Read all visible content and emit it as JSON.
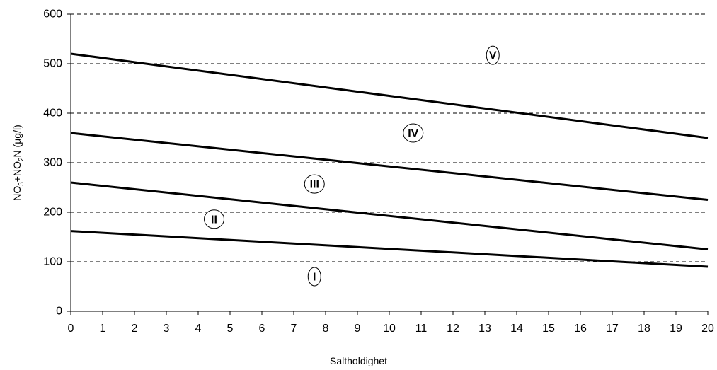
{
  "chart_data": {
    "type": "line",
    "xlabel": "Saltholdighet",
    "ylabel": {
      "parts": [
        "NO",
        "3",
        "+NO",
        "2",
        "N (µg/l)"
      ]
    },
    "xlim": [
      0,
      20
    ],
    "ylim": [
      0,
      600
    ],
    "x_ticks": [
      0,
      1,
      2,
      3,
      4,
      5,
      6,
      7,
      8,
      9,
      10,
      11,
      12,
      13,
      14,
      15,
      16,
      17,
      18,
      19,
      20
    ],
    "y_ticks": [
      0,
      100,
      200,
      300,
      400,
      500,
      600
    ],
    "grid": "horizontal dashed",
    "series": [
      {
        "x": [
          0,
          20
        ],
        "y": [
          162,
          90
        ]
      },
      {
        "x": [
          0,
          20
        ],
        "y": [
          260,
          125
        ]
      },
      {
        "x": [
          0,
          20
        ],
        "y": [
          360,
          225
        ]
      },
      {
        "x": [
          0,
          20
        ],
        "y": [
          520,
          350
        ]
      }
    ],
    "class_labels": [
      {
        "text": "I",
        "x": 7.65,
        "y": 70
      },
      {
        "text": "II",
        "x": 4.5,
        "y": 186
      },
      {
        "text": "III",
        "x": 7.65,
        "y": 257
      },
      {
        "text": "IV",
        "x": 10.75,
        "y": 360
      },
      {
        "text": "V",
        "x": 13.25,
        "y": 517
      }
    ],
    "colors": {
      "line": "#000000",
      "grid": "#000000",
      "background": "#ffffff"
    }
  }
}
